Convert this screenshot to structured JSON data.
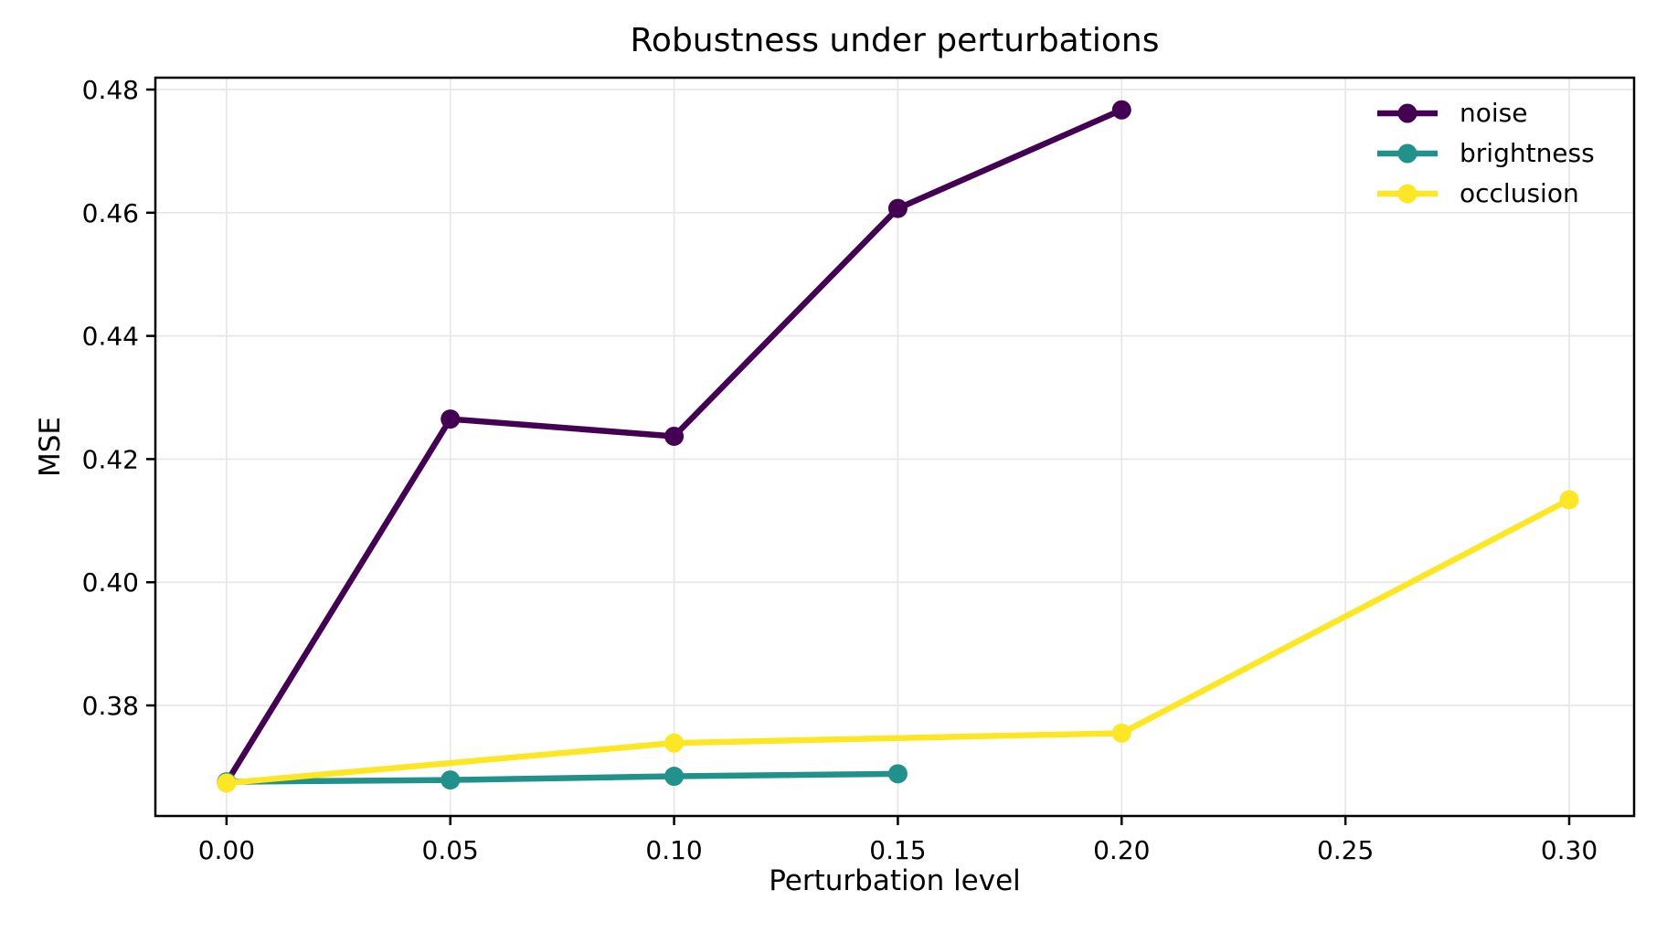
{
  "figure": {
    "background": "#ffffff"
  },
  "chart_data": {
    "type": "line",
    "title": "Robustness under perturbations",
    "xlabel": "Perturbation level",
    "ylabel": "MSE",
    "xlim": [
      -0.0159,
      0.3145
    ],
    "ylim": [
      0.36205,
      0.48193
    ],
    "grid": true,
    "legend_position": "upper right",
    "x_ticks": {
      "values": [
        0.0,
        0.05,
        0.1,
        0.15,
        0.2,
        0.25,
        0.3
      ],
      "labels": [
        "0.00",
        "0.05",
        "0.10",
        "0.15",
        "0.20",
        "0.25",
        "0.30"
      ]
    },
    "y_ticks": {
      "values": [
        0.38,
        0.4,
        0.42,
        0.44,
        0.46,
        0.48
      ],
      "labels": [
        "0.38",
        "0.40",
        "0.42",
        "0.44",
        "0.46",
        "0.48"
      ]
    },
    "series": [
      {
        "name": "noise",
        "color": "#440154",
        "x": [
          0.0,
          0.05,
          0.1,
          0.15,
          0.2
        ],
        "y": [
          0.3675,
          0.4265,
          0.4237,
          0.4607,
          0.4767
        ]
      },
      {
        "name": "brightness",
        "color": "#21918c",
        "x": [
          0.0,
          0.05,
          0.1,
          0.15
        ],
        "y": [
          0.3676,
          0.3679,
          0.3685,
          0.3689
        ]
      },
      {
        "name": "occlusion",
        "color": "#fde725",
        "x": [
          0.0,
          0.1,
          0.2,
          0.3
        ],
        "y": [
          0.3674,
          0.3739,
          0.3755,
          0.4134
        ]
      }
    ],
    "style": {
      "grid_color": "#e7e7e7",
      "spine_color": "#000000",
      "text_color": "#000000",
      "tick_font_px": 28,
      "line_width": 6.5,
      "marker_radius": 10.5
    }
  }
}
